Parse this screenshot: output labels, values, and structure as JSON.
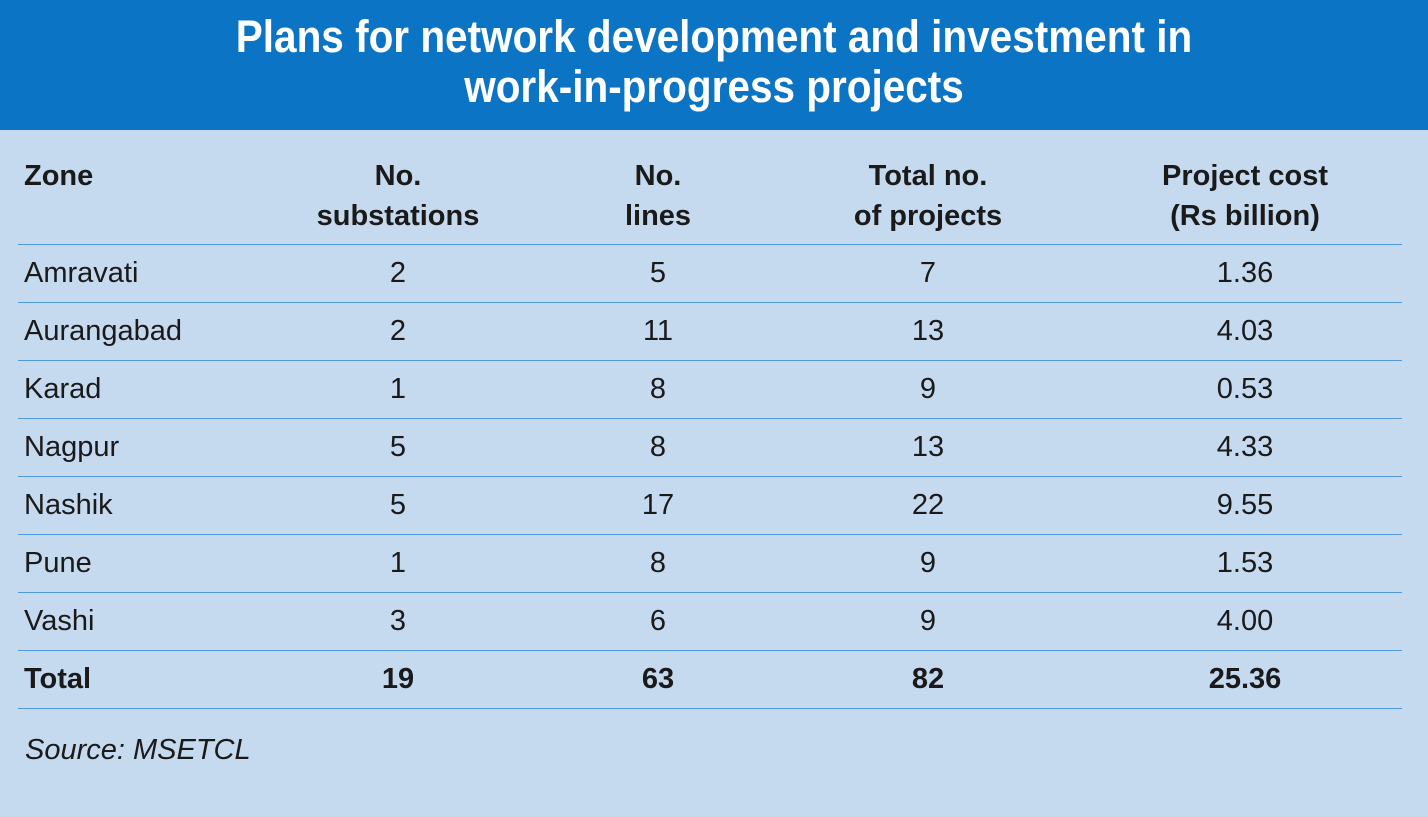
{
  "header": {
    "title_line1": "Plans for network development and investment in",
    "title_line2": "work-in-progress projects"
  },
  "colors": {
    "header_bg": "#0b74c4",
    "body_bg": "#c5d9ef",
    "rule": "#4f9ad6"
  },
  "chart_data": {
    "type": "table",
    "title": "Plans for network development and investment in work-in-progress projects",
    "columns": [
      {
        "line1": "Zone",
        "line2": ""
      },
      {
        "line1": "No.",
        "line2": "substations"
      },
      {
        "line1": "No.",
        "line2": "lines"
      },
      {
        "line1": "Total no.",
        "line2": "of projects"
      },
      {
        "line1": "Project cost",
        "line2": "(Rs billion)"
      }
    ],
    "rows": [
      [
        "Amravati",
        "2",
        "5",
        "7",
        "1.36"
      ],
      [
        "Aurangabad",
        "2",
        "11",
        "13",
        "4.03"
      ],
      [
        "Karad",
        "1",
        "8",
        "9",
        "0.53"
      ],
      [
        "Nagpur",
        "5",
        "8",
        "13",
        "4.33"
      ],
      [
        "Nashik",
        "5",
        "17",
        "22",
        "9.55"
      ],
      [
        "Pune",
        "1",
        "8",
        "9",
        "1.53"
      ],
      [
        "Vashi",
        "3",
        "6",
        "9",
        "4.00"
      ]
    ],
    "total": [
      "Total",
      "19",
      "63",
      "82",
      "25.36"
    ],
    "source": "Source: MSETCL"
  }
}
